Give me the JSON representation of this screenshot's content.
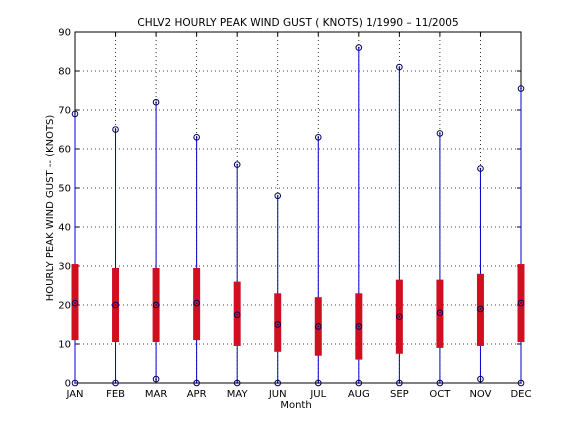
{
  "chart_data": {
    "type": "box",
    "title": "CHLV2  HOURLY PEAK WIND GUST ( KNOTS) 1/1990 – 11/2005",
    "xlabel": "Month",
    "ylabel": "HOURLY PEAK WIND GUST -- (KNOTS)",
    "ylim": [
      0,
      90
    ],
    "yticks": [
      0,
      10,
      20,
      30,
      40,
      50,
      60,
      70,
      80,
      90
    ],
    "grid": true,
    "categories": [
      "JAN",
      "FEB",
      "MAR",
      "APR",
      "MAY",
      "JUN",
      "JUL",
      "AUG",
      "SEP",
      "OCT",
      "NOV",
      "DEC"
    ],
    "min": [
      0,
      0,
      1,
      0,
      0,
      0,
      0,
      0,
      0,
      0,
      1,
      0
    ],
    "q1": [
      11,
      10.5,
      10.5,
      11,
      9.5,
      8,
      7,
      6,
      7.5,
      9,
      9.5,
      10.5
    ],
    "median": [
      20.5,
      20,
      20,
      20.5,
      17.5,
      15,
      14.5,
      14.5,
      17,
      18,
      19,
      20.5
    ],
    "q3": [
      30.5,
      29.5,
      29.5,
      29.5,
      26,
      23,
      22,
      23,
      26.5,
      26.5,
      28,
      30.5
    ],
    "max": [
      69,
      65,
      72,
      63,
      56,
      48,
      63,
      86,
      81,
      64,
      55,
      75.5
    ],
    "colors": {
      "whisker": "#0000cc",
      "box": "#d01020",
      "marker": "#000066",
      "grid": "#000000"
    }
  }
}
